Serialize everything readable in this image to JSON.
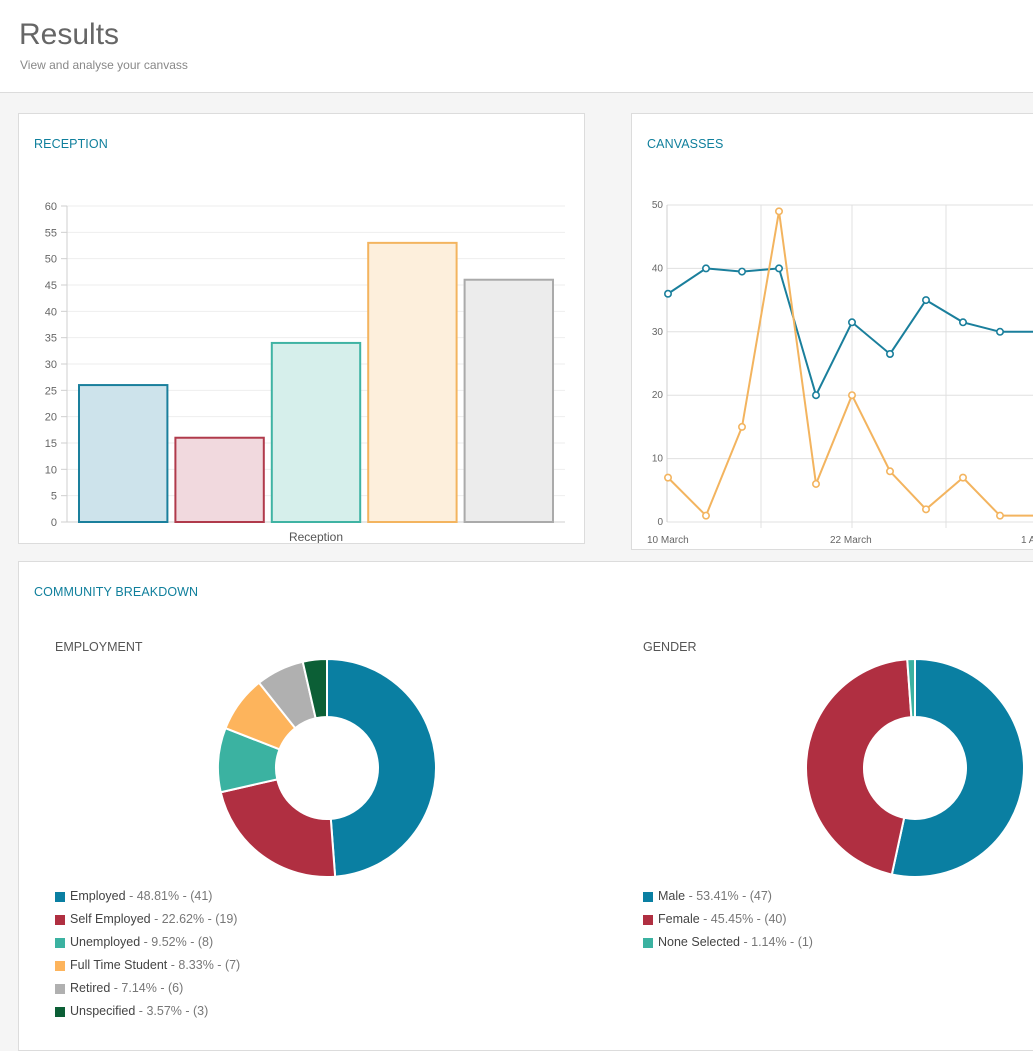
{
  "header": {
    "title": "Results",
    "subtitle": "View and analyse your canvass"
  },
  "reception": {
    "title": "RECEPTION",
    "chart_data": {
      "type": "bar",
      "categories": [
        "Reception"
      ],
      "series": [
        {
          "values": [
            26
          ],
          "fill": "#cde3eb",
          "stroke": "#1a7f9c"
        },
        {
          "values": [
            16
          ],
          "fill": "#f1d9de",
          "stroke": "#b03a4b"
        },
        {
          "values": [
            34
          ],
          "fill": "#d6efeb",
          "stroke": "#3fb3a3"
        },
        {
          "values": [
            53
          ],
          "fill": "#fdefdc",
          "stroke": "#f3b45f"
        },
        {
          "values": [
            46
          ],
          "fill": "#ececec",
          "stroke": "#aaaaaa"
        }
      ],
      "ylim": [
        0,
        60
      ],
      "yticks": [
        0,
        5,
        10,
        15,
        20,
        25,
        30,
        35,
        40,
        45,
        50,
        55,
        60
      ],
      "grid": true
    }
  },
  "canvasses": {
    "title": "CANVASSES",
    "chart_data": {
      "type": "line",
      "x": [
        "2024-03-10",
        "2024-03-13",
        "2024-03-16",
        "2024-03-18",
        "2024-03-20",
        "2024-03-22",
        "2024-03-25",
        "2024-03-28",
        "2024-03-31",
        "2024-04-03",
        "2024-04-06"
      ],
      "xtick_labels": [
        "10 March",
        "22 March",
        "1 A"
      ],
      "series": [
        {
          "color": "#1a7f9c",
          "values": [
            36,
            40,
            39.5,
            40,
            20,
            31.5,
            26.5,
            35,
            31.5,
            30,
            30
          ]
        },
        {
          "color": "#f3b45f",
          "values": [
            7,
            1,
            15,
            49,
            6,
            20,
            8,
            2,
            7,
            1,
            1
          ]
        }
      ],
      "ylim": [
        0,
        50
      ],
      "yticks": [
        0,
        10,
        20,
        30,
        40,
        50
      ],
      "grid": true
    }
  },
  "community": {
    "title": "COMMUNITY BREAKDOWN",
    "employment": {
      "title": "EMPLOYMENT",
      "chart_data": {
        "type": "pie",
        "slices": [
          {
            "label": "Employed",
            "percent_text": "48.81%",
            "count_text": "(41)",
            "value": 41,
            "color": "#0a7fa2"
          },
          {
            "label": "Self Employed",
            "percent_text": "22.62%",
            "count_text": "(19)",
            "value": 19,
            "color": "#b02f41"
          },
          {
            "label": "Unemployed",
            "percent_text": "9.52%",
            "count_text": "(8)",
            "value": 8,
            "color": "#3bb2a1"
          },
          {
            "label": "Full Time Student",
            "percent_text": "8.33%",
            "count_text": "(7)",
            "value": 7,
            "color": "#fdb45c"
          },
          {
            "label": "Retired",
            "percent_text": "7.14%",
            "count_text": "(6)",
            "value": 6,
            "color": "#b0b0b0"
          },
          {
            "label": "Unspecified",
            "percent_text": "3.57%",
            "count_text": "(3)",
            "value": 3,
            "color": "#0c5f36"
          }
        ]
      }
    },
    "gender": {
      "title": "GENDER",
      "chart_data": {
        "type": "pie",
        "slices": [
          {
            "label": "Male",
            "percent_text": "53.41%",
            "count_text": "(47)",
            "value": 47,
            "color": "#0a7fa2"
          },
          {
            "label": "Female",
            "percent_text": "45.45%",
            "count_text": "(40)",
            "value": 40,
            "color": "#b02f41"
          },
          {
            "label": "None Selected",
            "percent_text": "1.14%",
            "count_text": "(1)",
            "value": 1,
            "color": "#3bb2a1"
          }
        ]
      }
    }
  }
}
